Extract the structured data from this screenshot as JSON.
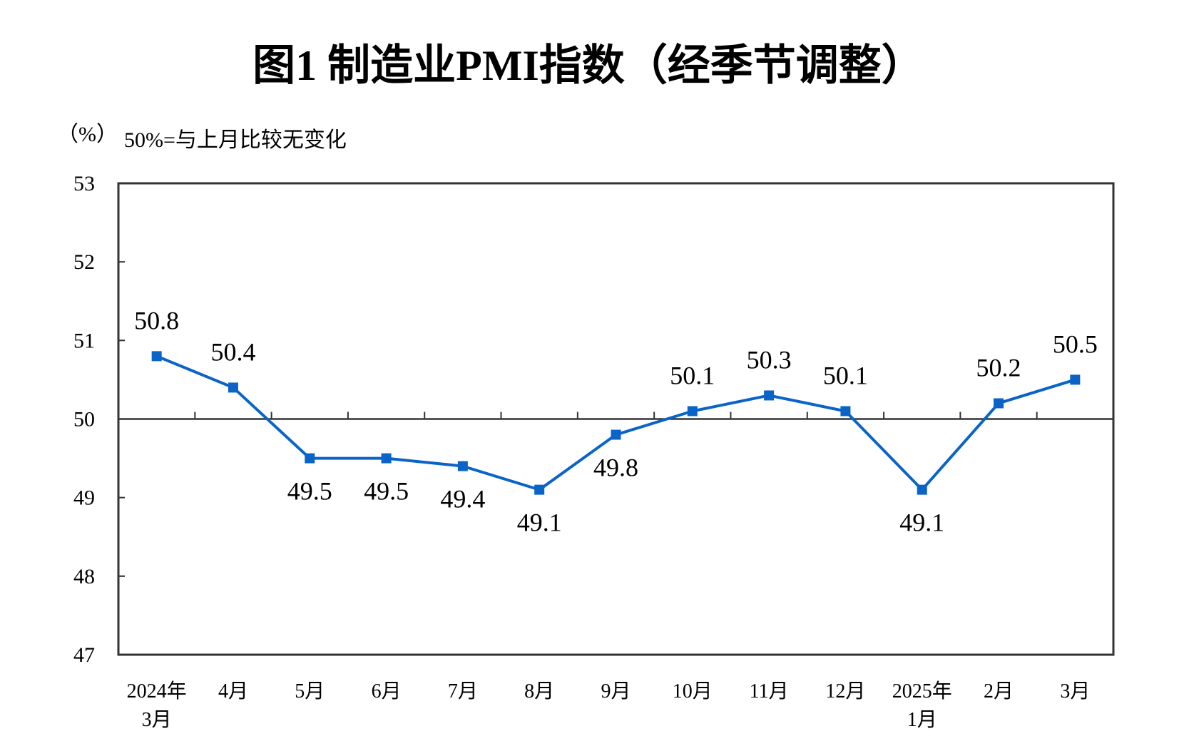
{
  "chart_data": {
    "type": "line",
    "title": "图1  制造业PMI指数（经季节调整）",
    "ylabel": "（%）",
    "annotation": "50%=与上月比较无变化",
    "categories": [
      [
        "2024年",
        "3月"
      ],
      [
        "4月"
      ],
      [
        "5月"
      ],
      [
        "6月"
      ],
      [
        "7月"
      ],
      [
        "8月"
      ],
      [
        "9月"
      ],
      [
        "10月"
      ],
      [
        "11月"
      ],
      [
        "12月"
      ],
      [
        "2025年",
        "1月"
      ],
      [
        "2月"
      ],
      [
        "3月"
      ]
    ],
    "values": [
      50.8,
      50.4,
      49.5,
      49.5,
      49.4,
      49.1,
      49.8,
      50.1,
      50.3,
      50.1,
      49.1,
      50.2,
      50.5
    ],
    "data_labels": [
      "50.8",
      "50.4",
      "49.5",
      "49.5",
      "49.4",
      "49.1",
      "49.8",
      "50.1",
      "50.3",
      "50.1",
      "49.1",
      "50.2",
      "50.5"
    ],
    "ylim": [
      47,
      53
    ],
    "yticks": [
      "47",
      "48",
      "49",
      "50",
      "51",
      "52",
      "53"
    ],
    "reference_line": 50,
    "grid": false,
    "legend": "none",
    "colors": {
      "series": "#0A64C8",
      "axis": "#333333",
      "text": "#000000"
    }
  }
}
